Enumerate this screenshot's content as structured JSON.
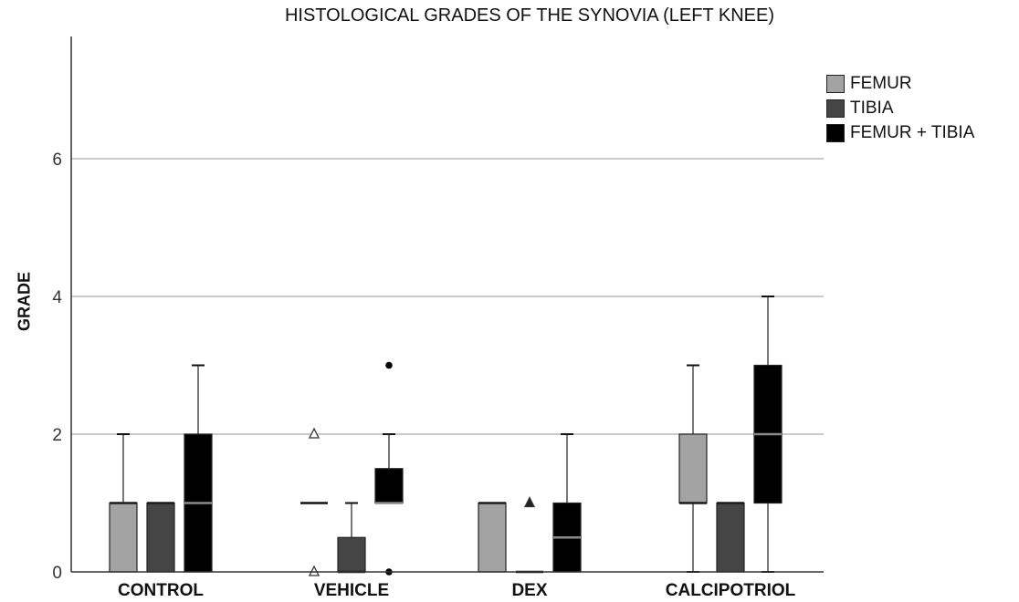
{
  "chart_data": {
    "type": "box",
    "title": "HISTOLOGICAL GRADES OF THE SYNOVIA (LEFT KNEE)",
    "xlabel": "",
    "ylabel": "GRADE",
    "ylim": [
      0,
      8
    ],
    "yticks": [
      0,
      2,
      4,
      6
    ],
    "grid": true,
    "legend_position": "top-right",
    "categories": [
      "CONTROL",
      "VEHICLE",
      "DEX",
      "CALCIPOTRIOL"
    ],
    "series": [
      {
        "name": "FEMUR",
        "color": "#a3a3a3",
        "boxes": [
          {
            "min": 0,
            "q1": 0,
            "median": 1,
            "q3": 1,
            "max": 2
          },
          {
            "min": 1,
            "q1": 1,
            "median": 1,
            "q3": 1,
            "max": 1
          },
          {
            "min": 0,
            "q1": 0,
            "median": 1,
            "q3": 1,
            "max": 1
          },
          {
            "min": 0,
            "q1": 1,
            "median": 1,
            "q3": 2,
            "max": 3
          }
        ]
      },
      {
        "name": "TIBIA",
        "color": "#454545",
        "boxes": [
          {
            "min": 0,
            "q1": 0,
            "median": 1,
            "q3": 1,
            "max": 1
          },
          {
            "min": 0,
            "q1": 0,
            "median": 0,
            "q3": 0.5,
            "max": 1
          },
          {
            "min": 0,
            "q1": 0,
            "median": 0,
            "q3": 0,
            "max": 0
          },
          {
            "min": 0,
            "q1": 0,
            "median": 1,
            "q3": 1,
            "max": 1
          }
        ]
      },
      {
        "name": "FEMUR + TIBIA",
        "color": "#000000",
        "boxes": [
          {
            "min": 0,
            "q1": 0,
            "median": 1,
            "q3": 2,
            "max": 3
          },
          {
            "min": 1,
            "q1": 1,
            "median": 1,
            "q3": 1.5,
            "max": 2
          },
          {
            "min": 0,
            "q1": 0,
            "median": 0.5,
            "q3": 1,
            "max": 2
          },
          {
            "min": 0,
            "q1": 1,
            "median": 2,
            "q3": 3,
            "max": 4
          }
        ]
      }
    ],
    "outliers": [
      {
        "category": "VEHICLE",
        "series": "FEMUR",
        "value": 2,
        "marker": "triangle-open"
      },
      {
        "category": "VEHICLE",
        "series": "FEMUR",
        "value": 0,
        "marker": "triangle-open"
      },
      {
        "category": "VEHICLE",
        "series": "FEMUR + TIBIA",
        "value": 3,
        "marker": "circle"
      },
      {
        "category": "VEHICLE",
        "series": "FEMUR + TIBIA",
        "value": 0,
        "marker": "circle"
      },
      {
        "category": "DEX",
        "series": "TIBIA",
        "value": 1,
        "marker": "triangle"
      }
    ]
  }
}
